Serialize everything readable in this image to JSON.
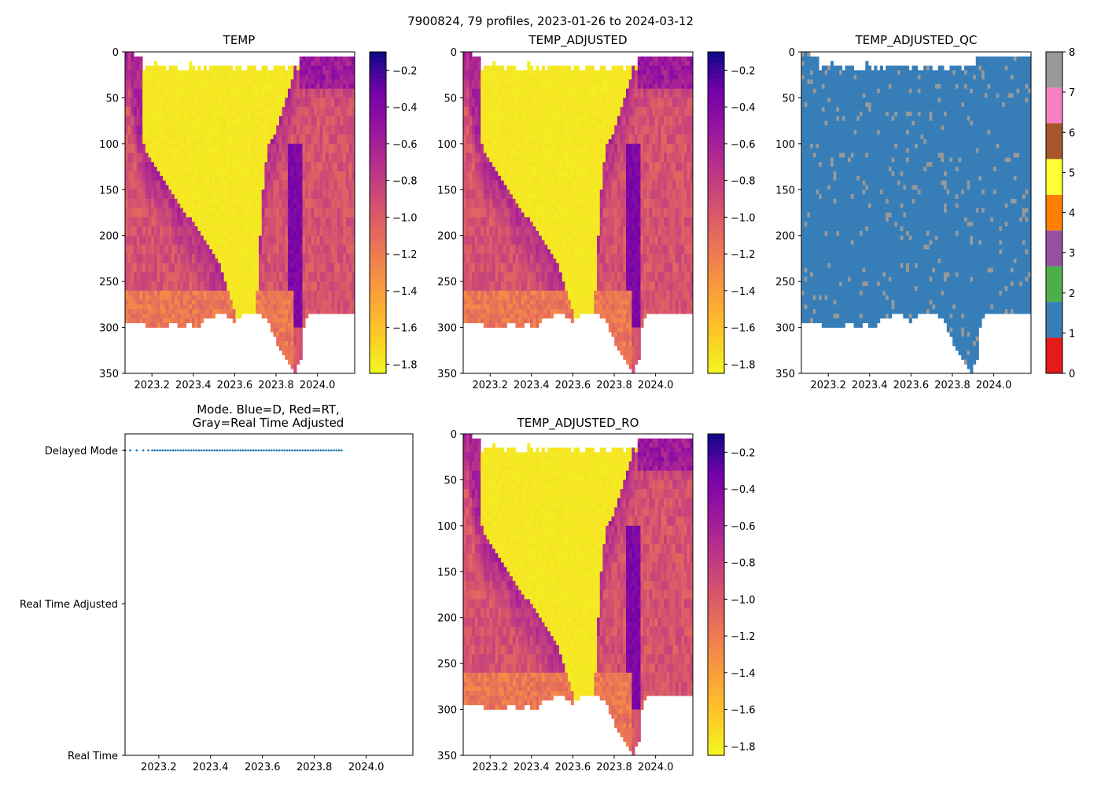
{
  "figure": {
    "suptitle": "7900824, 79 profiles, 2023-01-26 to 2024-03-12",
    "profile_count": 79,
    "date_start": "2023-01-26",
    "date_end": "2024-03-12"
  },
  "chart_data": [
    {
      "id": "temp",
      "type": "heatmap",
      "title": "TEMP",
      "variable": "TEMP",
      "xlim": [
        2023.07,
        2024.18
      ],
      "ylim": [
        350,
        0
      ],
      "xticks": [
        2023.2,
        2023.4,
        2023.6,
        2023.8,
        2024.0
      ],
      "xtick_labels": [
        "2023.2",
        "2023.4",
        "2023.6",
        "2023.8",
        "2024.0"
      ],
      "yticks": [
        0,
        50,
        100,
        150,
        200,
        250,
        300,
        350
      ],
      "ytick_labels": [
        "0",
        "50",
        "100",
        "150",
        "200",
        "250",
        "300",
        "350"
      ],
      "colormap": "plasma_r",
      "clim": [
        -1.85,
        -0.1
      ],
      "colorbar_ticks": [
        -0.2,
        -0.4,
        -0.6,
        -0.8,
        -1.0,
        -1.2,
        -1.4,
        -1.6,
        -1.8
      ],
      "colorbar_tick_labels": [
        "−0.2",
        "−0.4",
        "−0.6",
        "−0.8",
        "−1.0",
        "−1.2",
        "−1.4",
        "−1.6",
        "−1.8"
      ],
      "field": {
        "cold_surface_layer_deg_c": -1.8,
        "cold_layer_bottom_m": [
          70,
          80,
          50,
          40,
          20,
          18,
          16,
          15,
          15,
          15,
          15,
          15,
          14,
          14,
          14,
          14,
          15,
          15,
          15,
          15,
          15,
          15,
          15,
          15,
          15,
          15,
          15,
          15,
          15,
          15,
          15,
          15,
          15,
          15,
          15,
          15,
          15,
          15,
          15,
          15,
          15,
          15,
          15,
          15,
          15,
          15,
          15,
          15,
          15,
          15,
          15,
          15,
          15,
          15,
          15,
          15,
          15,
          15,
          15,
          20,
          40,
          60,
          60,
          40,
          30,
          20,
          20,
          15,
          10,
          8,
          8,
          6,
          6,
          6,
          6,
          6,
          6,
          6,
          6
        ],
        "warm_core_top_m": [
          0,
          0,
          30,
          60,
          80,
          90,
          100,
          110,
          115,
          120,
          125,
          130,
          135,
          140,
          145,
          150,
          155,
          160,
          165,
          170,
          175,
          180,
          180,
          185,
          190,
          195,
          200,
          205,
          210,
          215,
          220,
          225,
          230,
          240,
          250,
          260,
          270,
          280,
          290,
          300,
          310,
          320,
          330,
          330,
          300,
          260,
          200,
          150,
          120,
          100,
          95,
          90,
          80,
          70,
          60,
          50,
          40,
          30,
          20,
          5,
          0,
          0,
          0,
          0,
          0,
          0,
          0,
          0,
          0,
          0,
          0,
          0,
          0,
          0,
          0,
          0,
          0,
          0,
          0
        ],
        "warm_core_value_deg_c": -0.6,
        "deep_value_deg_c": -1.0
      },
      "profile_max_depth_m": [
        293,
        293,
        295,
        295,
        295,
        296,
        297,
        298,
        298,
        299,
        300,
        301,
        300,
        299,
        298,
        297,
        296,
        297,
        298,
        299,
        298,
        297,
        296,
        298,
        299,
        300,
        296,
        292,
        290,
        289,
        288,
        287,
        286,
        286,
        287,
        288,
        290,
        293,
        291,
        288,
        286,
        285,
        285,
        284,
        285,
        284,
        286,
        288,
        292,
        297,
        303,
        310,
        318,
        324,
        330,
        335,
        340,
        345,
        348,
        340,
        333,
        300,
        290,
        287,
        286,
        286,
        286,
        286,
        286,
        286,
        286,
        286,
        286,
        286,
        286,
        286,
        286,
        286,
        286
      ]
    },
    {
      "id": "temp_adjusted",
      "type": "heatmap",
      "title": "TEMP_ADJUSTED",
      "variable": "TEMP_ADJUSTED",
      "xlim": [
        2023.07,
        2024.18
      ],
      "ylim": [
        350,
        0
      ],
      "xticks": [
        2023.2,
        2023.4,
        2023.6,
        2023.8,
        2024.0
      ],
      "xtick_labels": [
        "2023.2",
        "2023.4",
        "2023.6",
        "2023.8",
        "2024.0"
      ],
      "yticks": [
        0,
        50,
        100,
        150,
        200,
        250,
        300,
        350
      ],
      "ytick_labels": [
        "0",
        "50",
        "100",
        "150",
        "200",
        "250",
        "300",
        "350"
      ],
      "colormap": "plasma_r",
      "clim": [
        -1.85,
        -0.1
      ],
      "colorbar_ticks": [
        -0.2,
        -0.4,
        -0.6,
        -0.8,
        -1.0,
        -1.2,
        -1.4,
        -1.6,
        -1.8
      ],
      "colorbar_tick_labels": [
        "−0.2",
        "−0.4",
        "−0.6",
        "−0.8",
        "−1.0",
        "−1.2",
        "−1.4",
        "−1.6",
        "−1.8"
      ]
    },
    {
      "id": "temp_adjusted_qc",
      "type": "heatmap",
      "title": "TEMP_ADJUSTED_QC",
      "variable": "TEMP_ADJUSTED_QC",
      "xlim": [
        2023.07,
        2024.18
      ],
      "ylim": [
        350,
        0
      ],
      "xticks": [
        2023.2,
        2023.4,
        2023.6,
        2023.8,
        2024.0
      ],
      "xtick_labels": [
        "2023.2",
        "2023.4",
        "2023.6",
        "2023.8",
        "2024.0"
      ],
      "yticks": [
        0,
        50,
        100,
        150,
        200,
        250,
        300,
        350
      ],
      "ytick_labels": [
        "0",
        "50",
        "100",
        "150",
        "200",
        "250",
        "300",
        "350"
      ],
      "colormap": "qc_categorical",
      "qc_value_dominant": 1,
      "qc_value_gaps": 8,
      "colorbar_ticks": [
        0,
        1,
        2,
        3,
        4,
        5,
        6,
        7,
        8
      ],
      "colorbar_tick_labels": [
        "0",
        "1",
        "2",
        "3",
        "4",
        "5",
        "6",
        "7",
        "8"
      ],
      "qc_colors": [
        "#e41a1c",
        "#377eb8",
        "#4daf4a",
        "#984ea3",
        "#ff7f00",
        "#ffff33",
        "#a65628",
        "#f781bf",
        "#999999"
      ]
    },
    {
      "id": "mode",
      "type": "scatter",
      "title": "Mode. Blue=D, Red=RT,\nGray=Real Time Adjusted",
      "title_lines": [
        "Mode. Blue=D, Red=RT,",
        "Gray=Real Time Adjusted"
      ],
      "xlim": [
        2023.07,
        2024.18
      ],
      "xticks": [
        2023.2,
        2023.4,
        2023.6,
        2023.8,
        2024.0
      ],
      "xtick_labels": [
        "2023.2",
        "2023.4",
        "2023.6",
        "2023.8",
        "2024.0"
      ],
      "ytick_labels": [
        "Delayed Mode",
        "Real Time Adjusted",
        "Real Time"
      ],
      "series": [
        {
          "name": "Delayed Mode",
          "color": "#1f77b4",
          "y_category": "Delayed Mode",
          "x": [
            2023.07,
            2023.09,
            2023.115,
            2023.14,
            2023.16,
            2023.175,
            2023.185,
            2023.195,
            2023.205,
            2023.215,
            2023.225,
            2023.235,
            2023.245,
            2023.255,
            2023.265,
            2023.275,
            2023.285,
            2023.295,
            2023.305,
            2023.315,
            2023.325,
            2023.335,
            2023.345,
            2023.355,
            2023.365,
            2023.375,
            2023.385,
            2023.395,
            2023.405,
            2023.415,
            2023.425,
            2023.435,
            2023.445,
            2023.455,
            2023.465,
            2023.475,
            2023.485,
            2023.495,
            2023.505,
            2023.515,
            2023.525,
            2023.535,
            2023.545,
            2023.555,
            2023.565,
            2023.575,
            2023.585,
            2023.595,
            2023.605,
            2023.615,
            2023.625,
            2023.635,
            2023.645,
            2023.655,
            2023.665,
            2023.675,
            2023.685,
            2023.695,
            2023.705,
            2023.715,
            2023.725,
            2023.735,
            2023.745,
            2023.755,
            2023.765,
            2023.775,
            2023.785,
            2023.795,
            2023.805,
            2023.815,
            2023.825,
            2023.835,
            2023.845,
            2023.855,
            2023.865,
            2023.875,
            2023.885,
            2023.895,
            2023.905
          ]
        }
      ]
    },
    {
      "id": "temp_adjusted_ro",
      "type": "heatmap",
      "title": "TEMP_ADJUSTED_RO",
      "variable": "TEMP_ADJUSTED_RO",
      "xlim": [
        2023.07,
        2024.18
      ],
      "ylim": [
        350,
        0
      ],
      "xticks": [
        2023.2,
        2023.4,
        2023.6,
        2023.8,
        2024.0
      ],
      "xtick_labels": [
        "2023.2",
        "2023.4",
        "2023.6",
        "2023.8",
        "2024.0"
      ],
      "yticks": [
        0,
        50,
        100,
        150,
        200,
        250,
        300,
        350
      ],
      "ytick_labels": [
        "0",
        "50",
        "100",
        "150",
        "200",
        "250",
        "300",
        "350"
      ],
      "colormap": "plasma_r",
      "clim": [
        -1.85,
        -0.1
      ],
      "colorbar_ticks": [
        -0.2,
        -0.4,
        -0.6,
        -0.8,
        -1.0,
        -1.2,
        -1.4,
        -1.6,
        -1.8
      ],
      "colorbar_tick_labels": [
        "−0.2",
        "−0.4",
        "−0.6",
        "−0.8",
        "−1.0",
        "−1.2",
        "−1.4",
        "−1.6",
        "−1.8"
      ]
    }
  ]
}
